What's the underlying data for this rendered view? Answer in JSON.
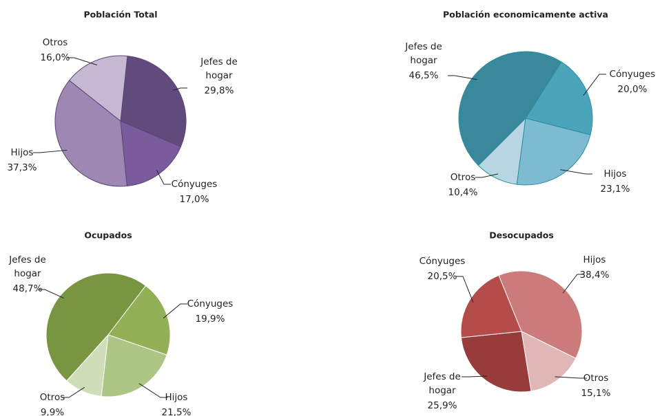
{
  "chart_data": [
    {
      "type": "pie",
      "title": "Población Total",
      "categories": [
        "Jefes de hogar",
        "Cónyuges",
        "Hijos",
        "Otros"
      ],
      "values": [
        29.8,
        17.0,
        37.3,
        16.0
      ],
      "value_labels": [
        "29,8%",
        "17,0%",
        "37,3%",
        "16,0%"
      ],
      "colors": [
        "#614a7c",
        "#7a5c9c",
        "#9d88b4",
        "#c5b8d3"
      ]
    },
    {
      "type": "pie",
      "title": "Población economicamente activa",
      "categories": [
        "Jefes de hogar",
        "Cónyuges",
        "Hijos",
        "Otros"
      ],
      "values": [
        46.5,
        20.0,
        23.1,
        10.4
      ],
      "value_labels": [
        "46,5%",
        "20,0%",
        "23,1%",
        "10,4%"
      ],
      "colors": [
        "#39889c",
        "#4aa5bb",
        "#7dbbd0",
        "#b6d7e1"
      ]
    },
    {
      "type": "pie",
      "title": "Ocupados",
      "categories": [
        "Jefes de hogar",
        "Cónyuges",
        "Hijos",
        "Otros"
      ],
      "values": [
        48.7,
        19.9,
        21.5,
        9.9
      ],
      "value_labels": [
        "48,7%",
        "19,9%",
        "21,5%",
        "9,9%"
      ],
      "colors": [
        "#789542",
        "#92b055",
        "#adc685",
        "#cfddb8"
      ]
    },
    {
      "type": "pie",
      "title": "Desocupados",
      "categories": [
        "Hijos",
        "Otros",
        "Jefes de hogar",
        "Cónyuges"
      ],
      "values": [
        38.4,
        15.1,
        25.9,
        20.5
      ],
      "value_labels": [
        "38,4%",
        "15,1%",
        "25,9%",
        "20,5%"
      ],
      "colors": [
        "#cc7b7b",
        "#e0b6b6",
        "#983c3b",
        "#b44c4a"
      ]
    }
  ]
}
